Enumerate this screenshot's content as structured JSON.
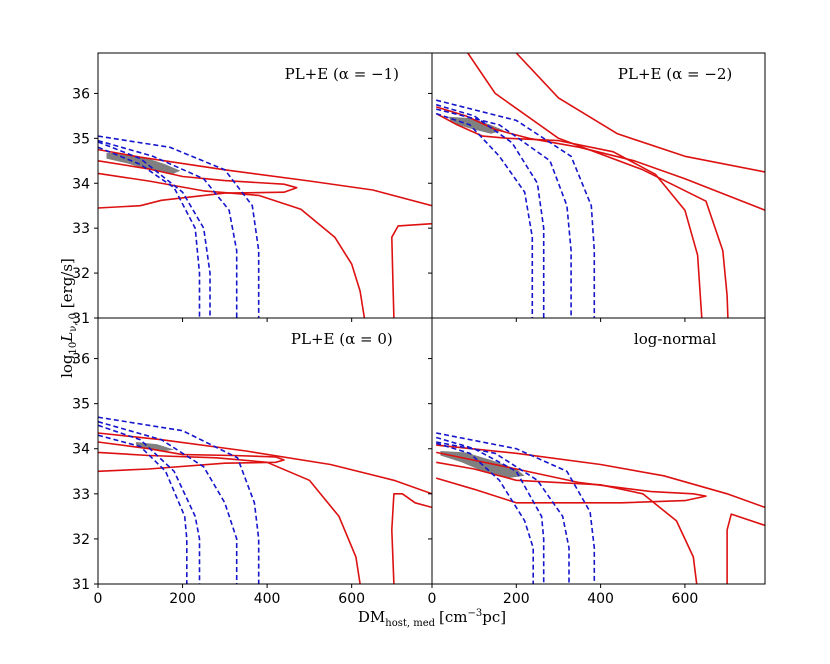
{
  "chart_data": {
    "type": "contour",
    "xlabel": "DM",
    "xlabel_sub": "host, med",
    "xlabel_unit": "[cm",
    "xlabel_unit_sup": "−3",
    "xlabel_unit_tail": "pc]",
    "ylabel": "log",
    "ylabel_sub": "10",
    "ylabel_mid": "L",
    "ylabel_mid_sub": "ν, 0",
    "ylabel_unit": " [erg/s]",
    "xlim": [
      0,
      790
    ],
    "ylim": [
      31,
      36.9
    ],
    "x_ticks": [
      0,
      200,
      400,
      600
    ],
    "x_tick_labels": [
      "0",
      "200",
      "400",
      "600"
    ],
    "y_ticks": [
      31,
      32,
      33,
      34,
      35,
      36
    ],
    "y_tick_labels": [
      "31",
      "32",
      "33",
      "34",
      "35",
      "36"
    ],
    "colors": {
      "red": "#dd1111",
      "blue": "#1515cc",
      "fill": "#808080"
    },
    "panels": [
      {
        "title": "PL+E (α = −1)",
        "gray": [
          [
            20,
            34.68
          ],
          [
            60,
            34.66
          ],
          [
            110,
            34.58
          ],
          [
            160,
            34.42
          ],
          [
            195,
            34.28
          ],
          [
            175,
            34.2
          ],
          [
            120,
            34.3
          ],
          [
            70,
            34.44
          ],
          [
            20,
            34.55
          ]
        ],
        "red": [
          [
            [
              0,
              34.75
            ],
            [
              100,
              34.58
            ],
            [
              300,
              34.3
            ],
            [
              500,
              34.05
            ],
            [
              650,
              33.85
            ],
            [
              790,
              33.5
            ]
          ],
          [
            [
              0,
              34.5
            ],
            [
              120,
              34.32
            ],
            [
              200,
              34.15
            ],
            [
              300,
              34.06
            ],
            [
              440,
              33.98
            ],
            [
              470,
              33.9
            ],
            [
              440,
              33.8
            ],
            [
              300,
              33.78
            ],
            [
              150,
              33.62
            ],
            [
              100,
              33.5
            ],
            [
              0,
              33.45
            ]
          ],
          [
            [
              0,
              34.22
            ],
            [
              120,
              34.05
            ],
            [
              250,
              33.83
            ],
            [
              380,
              33.73
            ],
            [
              480,
              33.42
            ],
            [
              560,
              32.8
            ],
            [
              600,
              32.2
            ],
            [
              620,
              31.6
            ],
            [
              630,
              31
            ]
          ],
          [
            [
              700,
              31
            ],
            [
              697,
              32
            ],
            [
              695,
              32.8
            ],
            [
              710,
              33.05
            ],
            [
              790,
              33.1
            ]
          ]
        ],
        "blue": [
          [
            [
              0,
              34.92
            ],
            [
              100,
              34.55
            ],
            [
              200,
              33.8
            ],
            [
              250,
              33.0
            ],
            [
              265,
              32.0
            ],
            [
              265,
              31
            ]
          ],
          [
            [
              0,
              34.8
            ],
            [
              100,
              34.42
            ],
            [
              180,
              33.9
            ],
            [
              230,
              33.0
            ],
            [
              240,
              32.0
            ],
            [
              240,
              31
            ]
          ],
          [
            [
              0,
              34.95
            ],
            [
              130,
              34.6
            ],
            [
              250,
              34.1
            ],
            [
              310,
              33.4
            ],
            [
              328,
              32.5
            ],
            [
              328,
              31
            ]
          ],
          [
            [
              0,
              35.05
            ],
            [
              170,
              34.8
            ],
            [
              300,
              34.3
            ],
            [
              365,
              33.5
            ],
            [
              380,
              32.5
            ],
            [
              380,
              31
            ]
          ]
        ]
      },
      {
        "title": "PL+E (α = −2)",
        "gray": [
          [
            40,
            35.48
          ],
          [
            90,
            35.45
          ],
          [
            140,
            35.3
          ],
          [
            170,
            35.18
          ],
          [
            140,
            35.1
          ],
          [
            90,
            35.22
          ],
          [
            45,
            35.35
          ]
        ],
        "red": [
          [
            [
              200,
              36.9
            ],
            [
              300,
              35.9
            ],
            [
              440,
              35.1
            ],
            [
              600,
              34.6
            ],
            [
              790,
              34.25
            ]
          ],
          [
            [
              10,
              35.7
            ],
            [
              80,
              35.5
            ],
            [
              150,
              35.2
            ],
            [
              230,
              35.0
            ],
            [
              350,
              34.8
            ],
            [
              480,
              34.5
            ],
            [
              600,
              34.1
            ],
            [
              790,
              33.4
            ]
          ],
          [
            [
              10,
              35.55
            ],
            [
              60,
              35.3
            ],
            [
              120,
              35.05
            ],
            [
              180,
              35.0
            ],
            [
              300,
              34.95
            ],
            [
              430,
              34.7
            ],
            [
              530,
              34.2
            ],
            [
              600,
              33.4
            ],
            [
              630,
              32.4
            ],
            [
              640,
              31
            ]
          ],
          [
            [
              85,
              36.9
            ],
            [
              150,
              36.0
            ],
            [
              300,
              35.0
            ],
            [
              500,
              34.3
            ],
            [
              650,
              33.6
            ],
            [
              690,
              32.5
            ],
            [
              700,
              31.5
            ],
            [
              702,
              31
            ]
          ]
        ],
        "blue": [
          [
            [
              10,
              35.75
            ],
            [
              100,
              35.5
            ],
            [
              190,
              34.9
            ],
            [
              250,
              34.0
            ],
            [
              265,
              33.0
            ],
            [
              265,
              31
            ]
          ],
          [
            [
              10,
              35.55
            ],
            [
              90,
              35.3
            ],
            [
              160,
              34.6
            ],
            [
              220,
              33.8
            ],
            [
              238,
              32.8
            ],
            [
              238,
              31
            ]
          ],
          [
            [
              10,
              35.65
            ],
            [
              160,
              35.3
            ],
            [
              280,
              34.5
            ],
            [
              320,
              33.5
            ],
            [
              330,
              32.5
            ],
            [
              330,
              31
            ]
          ],
          [
            [
              10,
              35.85
            ],
            [
              200,
              35.4
            ],
            [
              330,
              34.6
            ],
            [
              378,
              33.5
            ],
            [
              385,
              32.5
            ],
            [
              385,
              31
            ]
          ]
        ]
      },
      {
        "title": "PL+E (α = 0)",
        "gray": [
          [
            90,
            34.15
          ],
          [
            140,
            34.1
          ],
          [
            180,
            33.98
          ],
          [
            160,
            33.95
          ],
          [
            110,
            34.0
          ],
          [
            90,
            34.08
          ]
        ],
        "red": [
          [
            [
              0,
              34.35
            ],
            [
              150,
              34.2
            ],
            [
              350,
              33.95
            ],
            [
              550,
              33.65
            ],
            [
              700,
              33.3
            ],
            [
              790,
              33.0
            ]
          ],
          [
            [
              0,
              34.15
            ],
            [
              120,
              34.0
            ],
            [
              200,
              33.87
            ],
            [
              320,
              33.85
            ],
            [
              420,
              33.82
            ],
            [
              440,
              33.75
            ],
            [
              420,
              33.7
            ],
            [
              300,
              33.68
            ],
            [
              120,
              33.55
            ],
            [
              0,
              33.5
            ]
          ],
          [
            [
              0,
              33.92
            ],
            [
              120,
              33.85
            ],
            [
              280,
              33.8
            ],
            [
              400,
              33.7
            ],
            [
              500,
              33.3
            ],
            [
              570,
              32.5
            ],
            [
              610,
              31.6
            ],
            [
              620,
              31
            ]
          ],
          [
            [
              700,
              31
            ],
            [
              695,
              32.2
            ],
            [
              700,
              33.0
            ],
            [
              720,
              33.0
            ],
            [
              750,
              32.8
            ],
            [
              790,
              32.7
            ]
          ]
        ],
        "blue": [
          [
            [
              0,
              34.52
            ],
            [
              100,
              34.2
            ],
            [
              180,
              33.5
            ],
            [
              230,
              32.5
            ],
            [
              240,
              32.0
            ],
            [
              240,
              31
            ]
          ],
          [
            [
              0,
              34.3
            ],
            [
              100,
              34.05
            ],
            [
              160,
              33.5
            ],
            [
              205,
              32.5
            ],
            [
              210,
              32.0
            ],
            [
              210,
              31
            ]
          ],
          [
            [
              0,
              34.6
            ],
            [
              150,
              34.2
            ],
            [
              250,
              33.6
            ],
            [
              300,
              32.8
            ],
            [
              328,
              32.0
            ],
            [
              328,
              31
            ]
          ],
          [
            [
              0,
              34.7
            ],
            [
              200,
              34.4
            ],
            [
              330,
              33.8
            ],
            [
              370,
              32.8
            ],
            [
              380,
              32.0
            ],
            [
              380,
              31
            ]
          ]
        ]
      },
      {
        "title": "log-normal",
        "gray": [
          [
            20,
            33.95
          ],
          [
            80,
            33.92
          ],
          [
            140,
            33.75
          ],
          [
            200,
            33.55
          ],
          [
            220,
            33.4
          ],
          [
            180,
            33.35
          ],
          [
            120,
            33.5
          ],
          [
            70,
            33.7
          ],
          [
            20,
            33.85
          ]
        ],
        "red": [
          [
            [
              10,
              34.08
            ],
            [
              200,
              33.9
            ],
            [
              400,
              33.65
            ],
            [
              550,
              33.4
            ],
            [
              700,
              33.0
            ],
            [
              790,
              32.7
            ]
          ],
          [
            [
              10,
              33.92
            ],
            [
              200,
              33.55
            ],
            [
              350,
              33.25
            ],
            [
              520,
              33.05
            ],
            [
              620,
              33.0
            ],
            [
              650,
              32.95
            ],
            [
              600,
              32.85
            ],
            [
              450,
              32.8
            ],
            [
              200,
              32.8
            ],
            [
              100,
              33.1
            ],
            [
              10,
              33.35
            ]
          ],
          [
            [
              10,
              33.7
            ],
            [
              100,
              33.55
            ],
            [
              200,
              33.3
            ],
            [
              400,
              33.2
            ],
            [
              500,
              33.0
            ],
            [
              580,
              32.4
            ],
            [
              620,
              31.6
            ],
            [
              628,
              31
            ]
          ],
          [
            [
              700,
              31
            ],
            [
              700,
              32.2
            ],
            [
              710,
              32.55
            ],
            [
              790,
              32.3
            ]
          ]
        ],
        "blue": [
          [
            [
              10,
              34.25
            ],
            [
              100,
              34.0
            ],
            [
              200,
              33.5
            ],
            [
              260,
              32.5
            ],
            [
              265,
              32.0
            ],
            [
              265,
              31
            ]
          ],
          [
            [
              10,
              34.12
            ],
            [
              90,
              33.9
            ],
            [
              160,
              33.3
            ],
            [
              220,
              32.4
            ],
            [
              240,
              31.8
            ],
            [
              240,
              31
            ]
          ],
          [
            [
              10,
              34.15
            ],
            [
              150,
              33.9
            ],
            [
              250,
              33.3
            ],
            [
              310,
              32.5
            ],
            [
              325,
              31.8
            ],
            [
              325,
              31
            ]
          ],
          [
            [
              10,
              34.35
            ],
            [
              200,
              34.0
            ],
            [
              320,
              33.5
            ],
            [
              375,
              32.6
            ],
            [
              385,
              31.8
            ],
            [
              385,
              31
            ]
          ]
        ]
      }
    ]
  }
}
